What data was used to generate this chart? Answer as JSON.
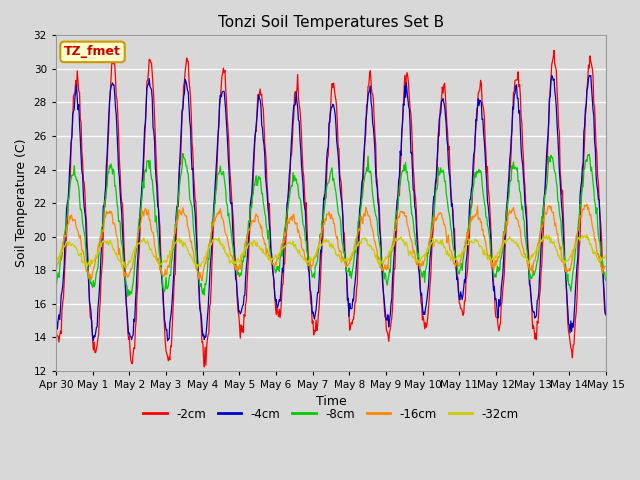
{
  "title": "Tonzi Soil Temperatures Set B",
  "xlabel": "Time",
  "ylabel": "Soil Temperature (C)",
  "ylim": [
    12,
    32
  ],
  "yticks": [
    12,
    14,
    16,
    18,
    20,
    22,
    24,
    26,
    28,
    30,
    32
  ],
  "colors": {
    "-2cm": "#ff0000",
    "-4cm": "#0000cc",
    "-8cm": "#00cc00",
    "-16cm": "#ff8800",
    "-32cm": "#cccc00"
  },
  "legend_label_order": [
    "-2cm",
    "-4cm",
    "-8cm",
    "-16cm",
    "-32cm"
  ],
  "annotation_text": "TZ_fmet",
  "annotation_bg": "#ffffcc",
  "annotation_border": "#cc9900",
  "annotation_text_color": "#cc0000",
  "bg_color": "#d8d8d8",
  "plot_bg": "#d8d8d8",
  "n_days": 15,
  "points_per_day": 48,
  "day_labels": [
    "Apr 30",
    "May 1",
    "May 2",
    "May 3",
    "May 4",
    "May 5",
    "May 6",
    "May 7",
    "May 8",
    "May 9",
    "May 10",
    "May 11",
    "May 12",
    "May 13",
    "May 14",
    "May 15"
  ],
  "figsize": [
    6.4,
    4.8
  ],
  "dpi": 100
}
